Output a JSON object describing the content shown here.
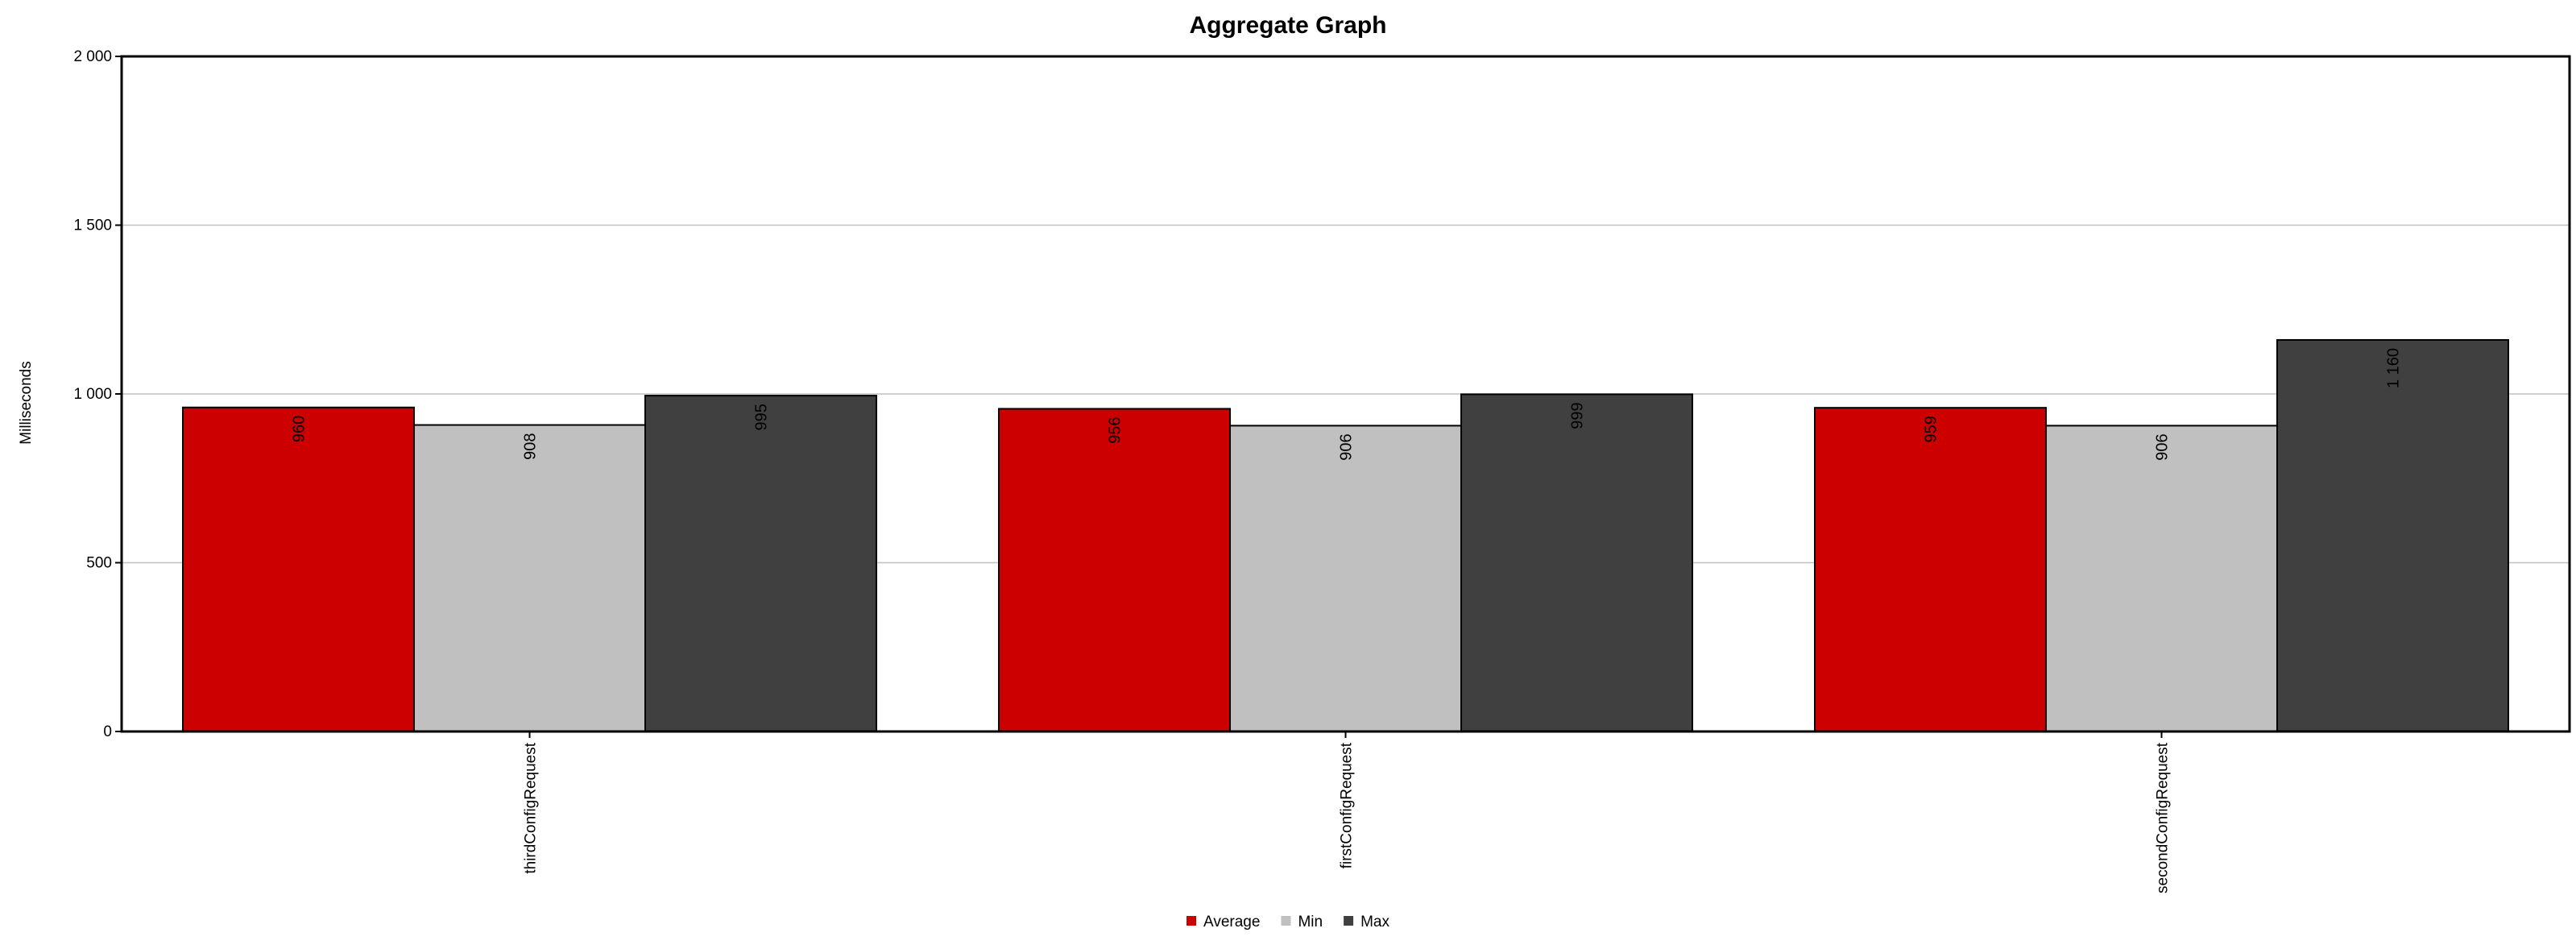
{
  "chart_data": {
    "type": "bar",
    "title": "Aggregate Graph",
    "xlabel": "",
    "ylabel": "Milliseconds",
    "ylim": [
      0,
      2000
    ],
    "yticks": [
      0,
      500,
      1000,
      1500,
      2000
    ],
    "ytick_labels": [
      "0",
      "500",
      "1 000",
      "1 500",
      "2 000"
    ],
    "categories": [
      "thirdConfigRequest",
      "firstConfigRequest",
      "secondConfigRequest"
    ],
    "series": [
      {
        "name": "Average",
        "color": "#cc0000",
        "values": [
          960,
          956,
          959
        ],
        "labels": [
          "960",
          "956",
          "959"
        ]
      },
      {
        "name": "Min",
        "color": "#c0c0c0",
        "values": [
          908,
          906,
          906
        ],
        "labels": [
          "908",
          "906",
          "906"
        ]
      },
      {
        "name": "Max",
        "color": "#404040",
        "values": [
          995,
          999,
          1160
        ],
        "labels": [
          "995",
          "999",
          "1 160"
        ]
      }
    ],
    "grid": true,
    "legend": "bottom-center"
  }
}
